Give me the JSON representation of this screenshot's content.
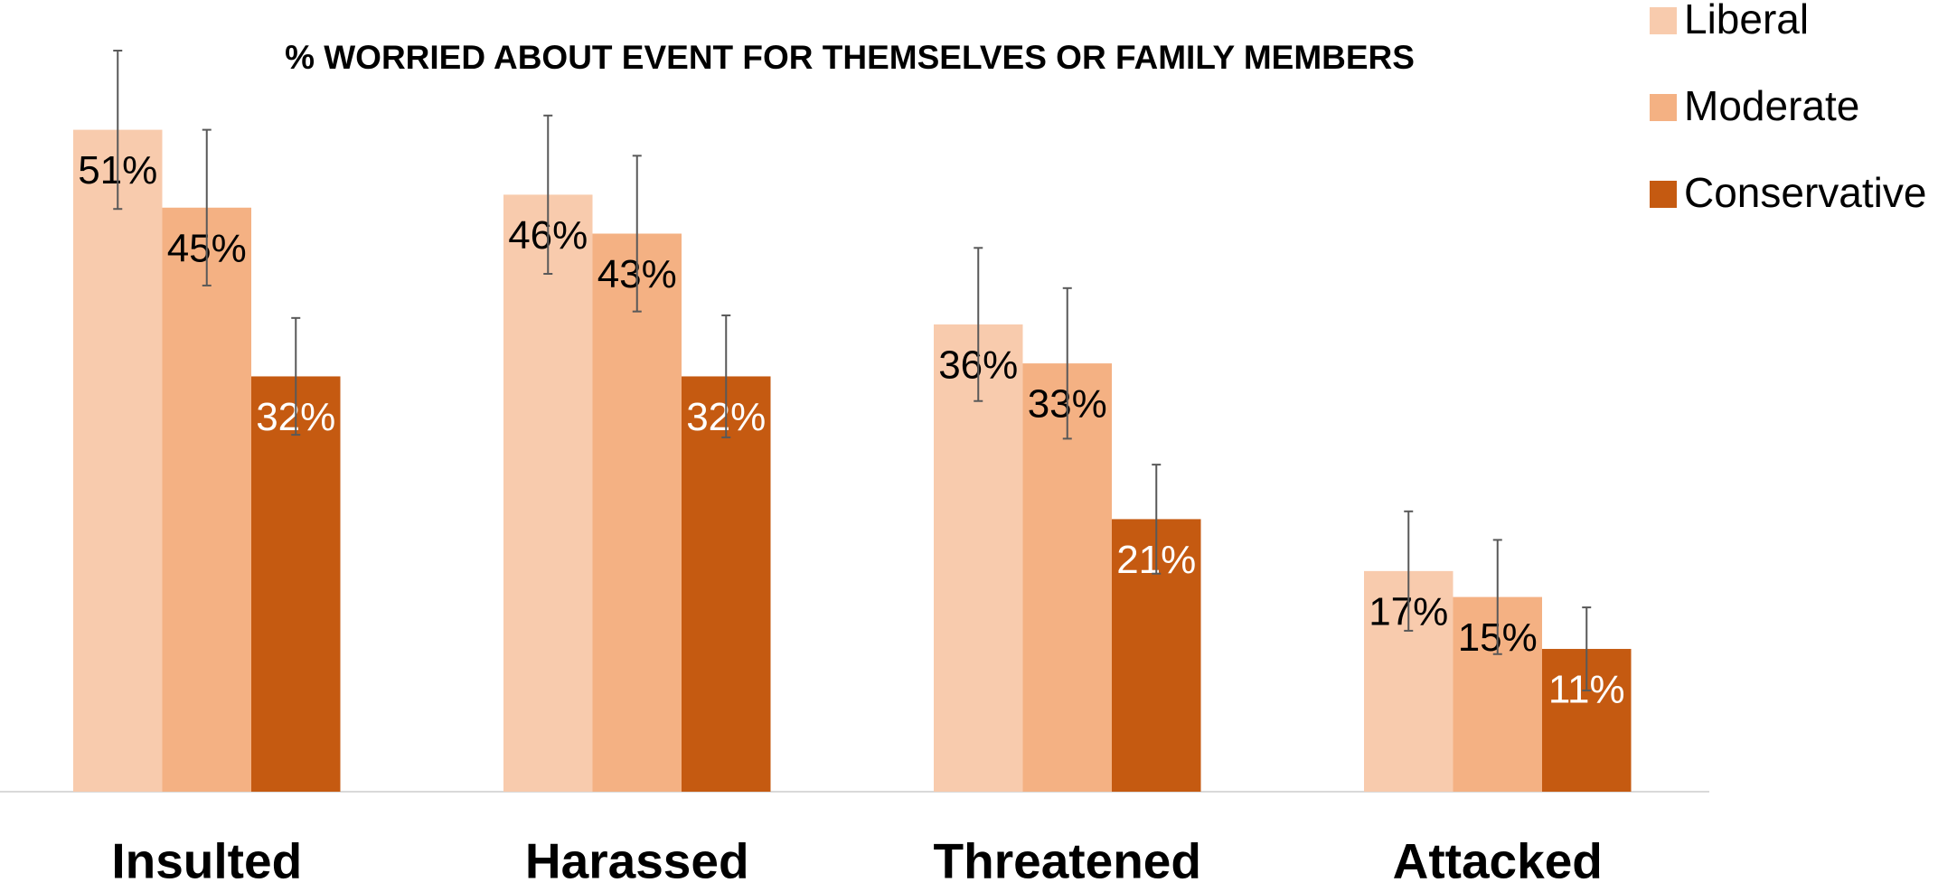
{
  "chart_data": {
    "type": "bar",
    "title": "% WORRIED ABOUT EVENT FOR THEMSELVES OR FAMILY MEMBERS",
    "categories": [
      "Insulted",
      "Harassed",
      "Threatened",
      "Attacked"
    ],
    "ylim": [
      0,
      61
    ],
    "series": [
      {
        "name": "Liberal",
        "color": "#f8cbad",
        "label_color": "#000000",
        "values": [
          51,
          46,
          36,
          17
        ],
        "errors": [
          6.1,
          6.1,
          5.9,
          4.6
        ],
        "value_labels": [
          "51%",
          "46%",
          "36%",
          "17%"
        ]
      },
      {
        "name": "Moderate",
        "color": "#f4b183",
        "label_color": "#000000",
        "values": [
          45,
          43,
          33,
          15
        ],
        "errors": [
          6,
          6,
          5.8,
          4.4
        ],
        "value_labels": [
          "45%",
          "43%",
          "33%",
          "15%"
        ]
      },
      {
        "name": "Conservative",
        "color": "#c55a11",
        "label_color": "#ffffff",
        "values": [
          32,
          32,
          21,
          11
        ],
        "errors": [
          4.5,
          4.7,
          4.2,
          3.2
        ],
        "value_labels": [
          "32%",
          "32%",
          "21%",
          "11%"
        ]
      }
    ]
  }
}
